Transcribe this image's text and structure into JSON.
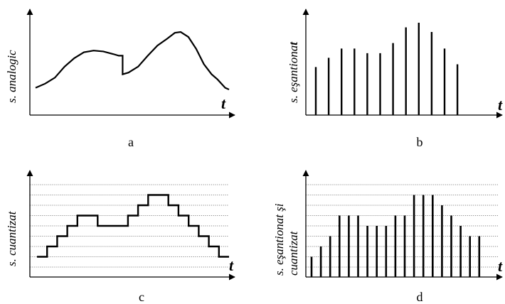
{
  "panels": {
    "a": {
      "ylabel": "s. analogic",
      "tlabel": "t",
      "caption": "a"
    },
    "b": {
      "ylabel_main": "s. eşantiona",
      "ylabel_bold": "t",
      "tlabel": "t",
      "caption": "b"
    },
    "c": {
      "ylabel": "s. cuantizat",
      "tlabel": "t",
      "caption": "c"
    },
    "d": {
      "ylabel_line1": "s. eşantionat şi",
      "ylabel_line2": "cuantizat",
      "tlabel": "t",
      "caption": "d"
    }
  },
  "signals": {
    "a_analog_points": [
      [
        0,
        0.3
      ],
      [
        0.05,
        0.35
      ],
      [
        0.1,
        0.42
      ],
      [
        0.15,
        0.55
      ],
      [
        0.2,
        0.65
      ],
      [
        0.25,
        0.72
      ],
      [
        0.3,
        0.74
      ],
      [
        0.35,
        0.73
      ],
      [
        0.4,
        0.7
      ],
      [
        0.43,
        0.68
      ],
      [
        0.45,
        0.68
      ],
      [
        0.45,
        0.46
      ],
      [
        0.48,
        0.48
      ],
      [
        0.53,
        0.55
      ],
      [
        0.58,
        0.68
      ],
      [
        0.63,
        0.8
      ],
      [
        0.68,
        0.88
      ],
      [
        0.72,
        0.95
      ],
      [
        0.75,
        0.96
      ],
      [
        0.79,
        0.9
      ],
      [
        0.83,
        0.76
      ],
      [
        0.87,
        0.58
      ],
      [
        0.91,
        0.46
      ],
      [
        0.94,
        0.4
      ],
      [
        0.98,
        0.3
      ],
      [
        1.0,
        0.28
      ]
    ],
    "b_sample_levels": [
      0.52,
      0.62,
      0.72,
      0.72,
      0.67,
      0.67,
      0.78,
      0.95,
      1.0,
      0.9,
      0.72,
      0.55
    ],
    "c_quant_steps": [
      1,
      2,
      3,
      4,
      5,
      5,
      4,
      4,
      4,
      5,
      6,
      7,
      7,
      6,
      5,
      4,
      3,
      2,
      1
    ],
    "d_quant_levels": [
      2,
      3,
      4,
      6,
      6,
      6,
      5,
      5,
      5,
      6,
      6,
      8,
      8,
      8,
      7,
      6,
      5,
      4,
      4
    ]
  },
  "colors": {
    "stroke": "#000000",
    "gridline": "#888888"
  }
}
